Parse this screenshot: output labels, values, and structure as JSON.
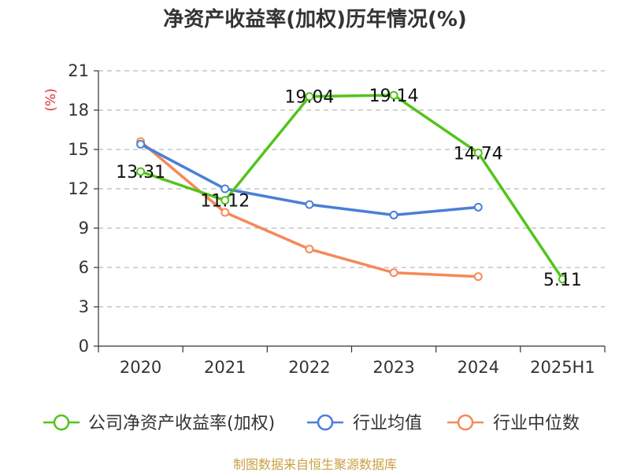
{
  "chart_data": {
    "type": "line",
    "title": "净资产收益率(加权)历年情况(%)",
    "ylabel": "(%)",
    "xlabel": "",
    "categories": [
      "2020",
      "2021",
      "2022",
      "2023",
      "2024",
      "2025H1"
    ],
    "ylim": [
      0,
      21
    ],
    "yticks": [
      0,
      3,
      6,
      9,
      12,
      15,
      18,
      21
    ],
    "grid": true,
    "legend_position": "bottom",
    "series": [
      {
        "name": "公司净资产收益率(加权)",
        "color": "#52c41a",
        "values": [
          13.31,
          11.12,
          19.04,
          19.14,
          14.74,
          5.11
        ],
        "labels": [
          "13.31",
          "11.12",
          "19.04",
          "19.14",
          "14.74",
          "5.11"
        ]
      },
      {
        "name": "行业均值",
        "color": "#4a7fd6",
        "values": [
          15.4,
          12.0,
          10.8,
          10.0,
          10.6,
          null
        ]
      },
      {
        "name": "行业中位数",
        "color": "#f5895a",
        "values": [
          15.6,
          10.2,
          7.4,
          5.6,
          5.3,
          null
        ]
      }
    ],
    "source": "制图数据来自恒生聚源数据库"
  }
}
